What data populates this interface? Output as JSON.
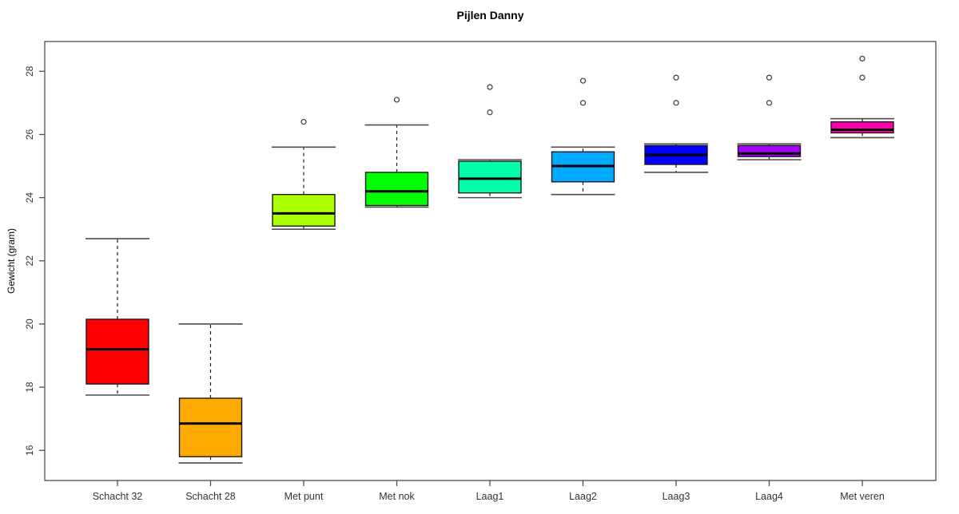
{
  "title": "Pijlen Danny",
  "chart_data": {
    "type": "boxplot",
    "title": "Pijlen Danny",
    "xlabel": "",
    "ylabel": "Gewicht (gram)",
    "y_ticks": [
      16,
      18,
      20,
      22,
      24,
      26,
      28
    ],
    "ylim": [
      15.05,
      28.94
    ],
    "grid": false,
    "legend": "none",
    "categories": [
      "Schacht 32",
      "Schacht 28",
      "Met punt",
      "Met nok",
      "Laag1",
      "Laag2",
      "Laag3",
      "Laag4",
      "Met veren"
    ],
    "series": [
      {
        "name": "Schacht 32",
        "color": "#FF0000",
        "whisker_low": 17.75,
        "q1": 18.1,
        "median": 19.2,
        "q3": 20.15,
        "whisker_high": 22.7,
        "outliers": []
      },
      {
        "name": "Schacht 28",
        "color": "#FFAA00",
        "whisker_low": 15.6,
        "q1": 15.8,
        "median": 16.85,
        "q3": 17.65,
        "whisker_high": 20.0,
        "outliers": []
      },
      {
        "name": "Met punt",
        "color": "#AAFF00",
        "whisker_low": 23.0,
        "q1": 23.1,
        "median": 23.5,
        "q3": 24.1,
        "whisker_high": 25.6,
        "outliers": [
          26.4
        ]
      },
      {
        "name": "Met nok",
        "color": "#00FF00",
        "whisker_low": 23.7,
        "q1": 23.75,
        "median": 24.2,
        "q3": 24.8,
        "whisker_high": 26.3,
        "outliers": [
          27.1
        ]
      },
      {
        "name": "Laag1",
        "color": "#00FFAA",
        "whisker_low": 24.0,
        "q1": 24.15,
        "median": 24.6,
        "q3": 25.15,
        "whisker_high": 25.2,
        "outliers": [
          26.7,
          27.5
        ]
      },
      {
        "name": "Laag2",
        "color": "#00AAFF",
        "whisker_low": 24.1,
        "q1": 24.5,
        "median": 25.0,
        "q3": 25.45,
        "whisker_high": 25.6,
        "outliers": [
          27.0,
          27.7
        ]
      },
      {
        "name": "Laag3",
        "color": "#0000FF",
        "whisker_low": 24.8,
        "q1": 25.05,
        "median": 25.35,
        "q3": 25.65,
        "whisker_high": 25.7,
        "outliers": [
          27.0,
          27.8
        ]
      },
      {
        "name": "Laag4",
        "color": "#AA00FF",
        "whisker_low": 25.2,
        "q1": 25.3,
        "median": 25.4,
        "q3": 25.65,
        "whisker_high": 25.7,
        "outliers": [
          27.0,
          27.8
        ]
      },
      {
        "name": "Met veren",
        "color": "#FF00AA",
        "whisker_low": 25.9,
        "q1": 26.05,
        "median": 26.15,
        "q3": 26.4,
        "whisker_high": 26.5,
        "outliers": [
          27.8,
          28.4
        ]
      }
    ]
  },
  "style_colors": {
    "frame": "#4d4d4d",
    "box_border": "#1a1a1a",
    "median": "#000000",
    "whisker": "#1a1a1a",
    "cap": "#4d4d4d",
    "outlier_stroke": "#3a3a3a",
    "tick_text": "#333333"
  }
}
